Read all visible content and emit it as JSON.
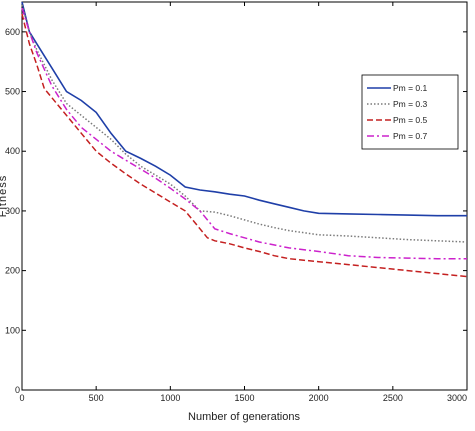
{
  "chart_data": {
    "type": "line",
    "title": "",
    "xlabel": "Number of generations",
    "ylabel": "Fitness",
    "xlim": [
      0,
      3000
    ],
    "ylim": [
      0,
      650
    ],
    "xticks": [
      0,
      500,
      1000,
      1500,
      2000,
      2500,
      3000
    ],
    "yticks": [
      0,
      100,
      200,
      300,
      400,
      500,
      600
    ],
    "grid": false,
    "legend_position": "top-right",
    "series": [
      {
        "name": "Pm = 0.1",
        "color": "#1f3fa8",
        "dash": "solid",
        "x": [
          0,
          50,
          100,
          200,
          300,
          400,
          500,
          600,
          700,
          800,
          900,
          1000,
          1100,
          1200,
          1300,
          1400,
          1500,
          1600,
          1700,
          1800,
          1900,
          2000,
          2200,
          2400,
          2600,
          2800,
          3000
        ],
        "y": [
          650,
          600,
          580,
          540,
          500,
          485,
          465,
          430,
          400,
          388,
          375,
          360,
          340,
          335,
          332,
          328,
          325,
          318,
          312,
          306,
          300,
          296,
          295,
          294,
          293,
          292,
          292
        ]
      },
      {
        "name": "Pm = 0.3",
        "color": "#7a7a7a",
        "dash": "dotted",
        "x": [
          0,
          50,
          100,
          200,
          300,
          400,
          500,
          600,
          700,
          800,
          900,
          1000,
          1100,
          1200,
          1300,
          1400,
          1500,
          1600,
          1700,
          1800,
          2000,
          2200,
          2400,
          2600,
          2800,
          3000
        ],
        "y": [
          645,
          600,
          570,
          520,
          480,
          460,
          440,
          420,
          395,
          375,
          360,
          345,
          325,
          300,
          298,
          292,
          285,
          278,
          272,
          267,
          260,
          258,
          255,
          252,
          250,
          248
        ]
      },
      {
        "name": "Pm = 0.5",
        "color": "#c42020",
        "dash": "dashed",
        "x": [
          0,
          50,
          100,
          150,
          200,
          300,
          400,
          500,
          600,
          700,
          800,
          900,
          1000,
          1100,
          1200,
          1250,
          1300,
          1400,
          1500,
          1600,
          1700,
          1800,
          2000,
          2200,
          2400,
          2600,
          2800,
          3000
        ],
        "y": [
          630,
          580,
          545,
          505,
          490,
          460,
          430,
          400,
          380,
          362,
          345,
          330,
          315,
          300,
          270,
          255,
          250,
          245,
          238,
          232,
          225,
          220,
          215,
          210,
          205,
          200,
          195,
          190
        ]
      },
      {
        "name": "Pm = 0.7",
        "color": "#cc22cc",
        "dash": "dashdot",
        "x": [
          0,
          50,
          100,
          200,
          300,
          400,
          500,
          600,
          700,
          800,
          900,
          1000,
          1100,
          1200,
          1300,
          1400,
          1500,
          1600,
          1800,
          2000,
          2200,
          2400,
          2600,
          2800,
          3000
        ],
        "y": [
          640,
          600,
          565,
          510,
          470,
          440,
          420,
          400,
          385,
          370,
          355,
          338,
          320,
          300,
          270,
          262,
          255,
          248,
          238,
          232,
          225,
          222,
          221,
          220,
          220
        ]
      }
    ]
  }
}
